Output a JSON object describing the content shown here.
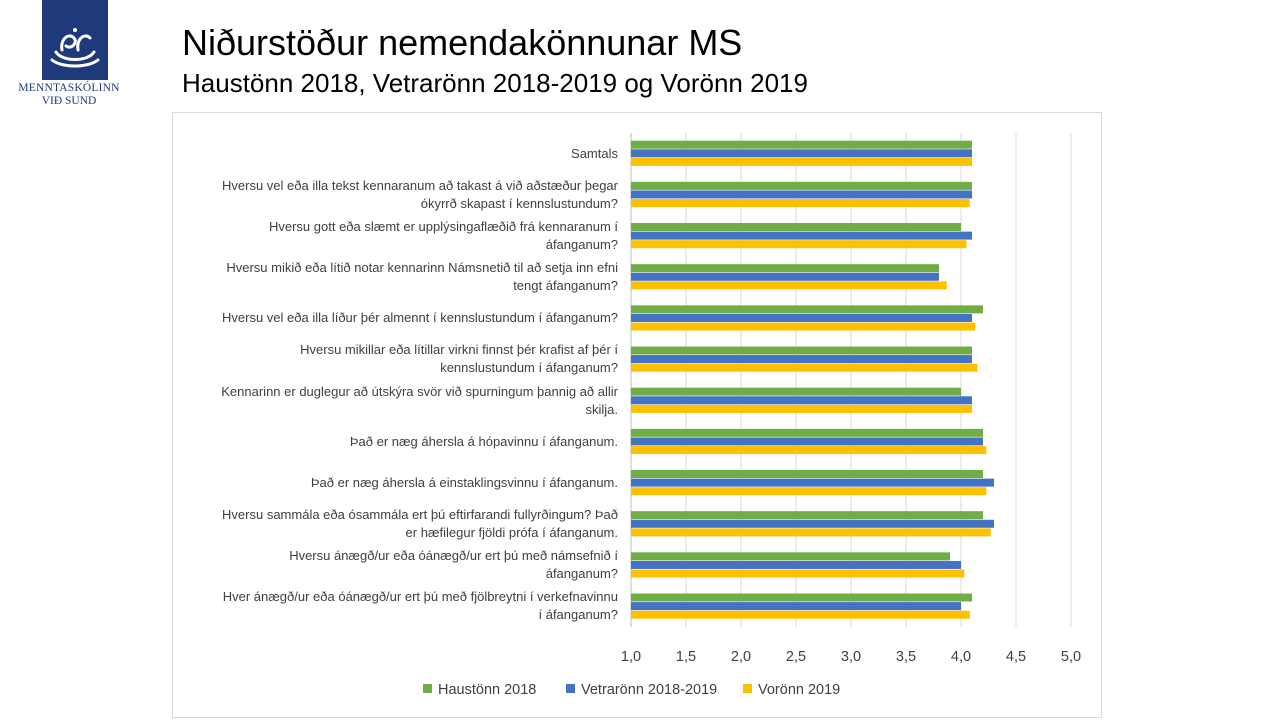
{
  "logo": {
    "line1": "MENNTASKÓLINN",
    "line2": "VIÐ SUND",
    "icon": "swan-logo-icon",
    "color": "#1f3a7a"
  },
  "header": {
    "title": "Niðurstöður nemendakönnunar MS",
    "subtitle": "Haustönn 2018, Vetrarönn 2018-2019 og Vorönn 2019"
  },
  "chart_data": {
    "type": "bar",
    "orientation": "horizontal",
    "categories": [
      "Samtals",
      "Hversu vel eða illa tekst kennaranum að takast á við aðstæður þegar ókyrrð skapast í kennslustundum?",
      "Hversu gott eða slæmt er upplýsingaflæðið frá kennaranum í áfanganum?",
      "Hversu mikið eða lítið notar kennarinn Námsnetið til að setja inn efni tengt áfanganum?",
      "Hversu vel eða illa líður þér almennt í kennslustundum í áfanganum?",
      "Hversu mikillar eða lítillar virkni finnst þér krafist af þér í kennslustundum í áfanganum?",
      "Kennarinn er duglegur að útskýra svör við spurningum þannig að allir skilja.",
      "Það er næg áhersla á hópavinnu í áfanganum.",
      "Það er næg áhersla á einstaklingsvinnu í áfanganum.",
      "Hversu sammála eða ósammála ert þú eftirfarandi fullyrðingum? Það er hæfilegur fjöldi prófa í áfanganum.",
      "Hversu ánægð/ur eða óánægð/ur ert þú með námsefnið í áfanganum?",
      "Hver ánægð/ur eða óánægð/ur ert þú með fjölbreytni í verkefnavinnu í áfanganum?"
    ],
    "category_lines": [
      [
        "Samtals"
      ],
      [
        "Hversu vel eða illa tekst kennaranum að takast á við aðstæður þegar",
        "ókyrrð skapast í kennslustundum?"
      ],
      [
        "Hversu gott eða slæmt er upplýsingaflæðið frá kennaranum í",
        "áfanganum?"
      ],
      [
        "Hversu mikið eða lítið notar kennarinn Námsnetið til að setja inn efni",
        "tengt áfanganum?"
      ],
      [
        "Hversu vel eða illa líður þér almennt í kennslustundum í áfanganum?"
      ],
      [
        "Hversu mikillar eða lítillar virkni finnst þér krafist af þér í",
        "kennslustundum í áfanganum?"
      ],
      [
        "Kennarinn er duglegur að útskýra svör við spurningum þannig að allir",
        "skilja."
      ],
      [
        "Það er næg áhersla á hópavinnu í áfanganum."
      ],
      [
        "Það er næg áhersla á einstaklingsvinnu í áfanganum."
      ],
      [
        "Hversu sammála eða ósammála ert þú eftirfarandi fullyrðingum? Það",
        "er hæfilegur fjöldi prófa í áfanganum."
      ],
      [
        "Hversu ánægð/ur eða óánægð/ur ert þú með námsefnið í",
        "áfanganum?"
      ],
      [
        "Hver ánægð/ur eða óánægð/ur ert þú með fjölbreytni í verkefnavinnu",
        "í áfanganum?"
      ]
    ],
    "series": [
      {
        "name": "Haustönn 2018",
        "color": "#70ad47",
        "values": [
          4.1,
          4.1,
          4.0,
          3.8,
          4.2,
          4.1,
          4.0,
          4.2,
          4.2,
          4.2,
          3.9,
          4.1
        ]
      },
      {
        "name": "Vetrarönn 2018-2019",
        "color": "#4472c4",
        "values": [
          4.1,
          4.1,
          4.1,
          3.8,
          4.1,
          4.1,
          4.1,
          4.2,
          4.3,
          4.3,
          4.0,
          4.0
        ]
      },
      {
        "name": "Vorönn 2019",
        "color": "#ffc000",
        "values": [
          4.1,
          4.08,
          4.05,
          3.87,
          4.13,
          4.15,
          4.1,
          4.23,
          4.23,
          4.27,
          4.03,
          4.08
        ]
      }
    ],
    "xlim": [
      1.0,
      5.0
    ],
    "xticks": [
      "1,0",
      "1,5",
      "2,0",
      "2,5",
      "3,0",
      "3,5",
      "4,0",
      "4,5",
      "5,0"
    ],
    "xtick_values": [
      1.0,
      1.5,
      2.0,
      2.5,
      3.0,
      3.5,
      4.0,
      4.5,
      5.0
    ],
    "grid": true,
    "legend_position": "bottom"
  }
}
